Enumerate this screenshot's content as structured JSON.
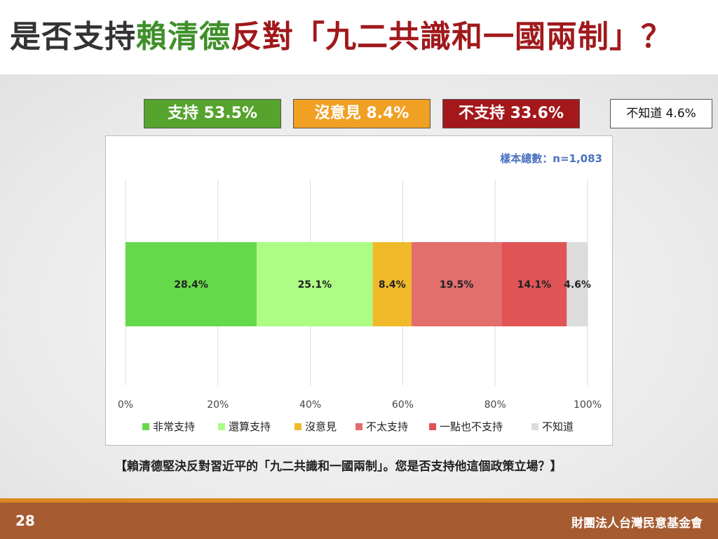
{
  "title": {
    "part1": "是否支持",
    "part2": "賴清德",
    "part3": "反對「九二共識和一國兩制」？"
  },
  "summary": {
    "support": "支持 53.5%",
    "no_opinion": "沒意見 8.4%",
    "oppose": "不支持 33.6%",
    "dont_know": "不知道 4.6%"
  },
  "chart_data": {
    "type": "bar",
    "orientation": "horizontal-stacked-100",
    "sample_note": "樣本總數：n=1,083",
    "xlim": [
      0,
      100
    ],
    "x_ticks": [
      "0%",
      "20%",
      "40%",
      "60%",
      "80%",
      "100%"
    ],
    "legend_position": "bottom",
    "grid": true,
    "series": [
      {
        "name": "非常支持",
        "value": 28.4,
        "label": "28.4%",
        "color": "#66d94a"
      },
      {
        "name": "還算支持",
        "value": 25.1,
        "label": "25.1%",
        "color": "#adfc86"
      },
      {
        "name": "沒意見",
        "value": 8.4,
        "label": "8.4%",
        "color": "#f0b92a"
      },
      {
        "name": "不太支持",
        "value": 19.5,
        "label": "19.5%",
        "color": "#e26e6e"
      },
      {
        "name": "一點也不支持",
        "value": 14.1,
        "label": "14.1%",
        "color": "#e05456"
      },
      {
        "name": "不知道",
        "value": 4.6,
        "label": "4.6%",
        "color": "#dcdcdc"
      }
    ]
  },
  "question": "【賴清德堅決反對習近平的「九二共識和一國兩制」。您是否支持他這個政策立場？】",
  "footer": {
    "page": "28",
    "org": "財團法人台灣民意基金會"
  },
  "colors": {
    "title_green": "#3f8f2a",
    "title_red": "#a0191c",
    "footer_bg": "#a65b31",
    "footer_line": "#d98a1f",
    "sample_note": "#4a70c0"
  }
}
